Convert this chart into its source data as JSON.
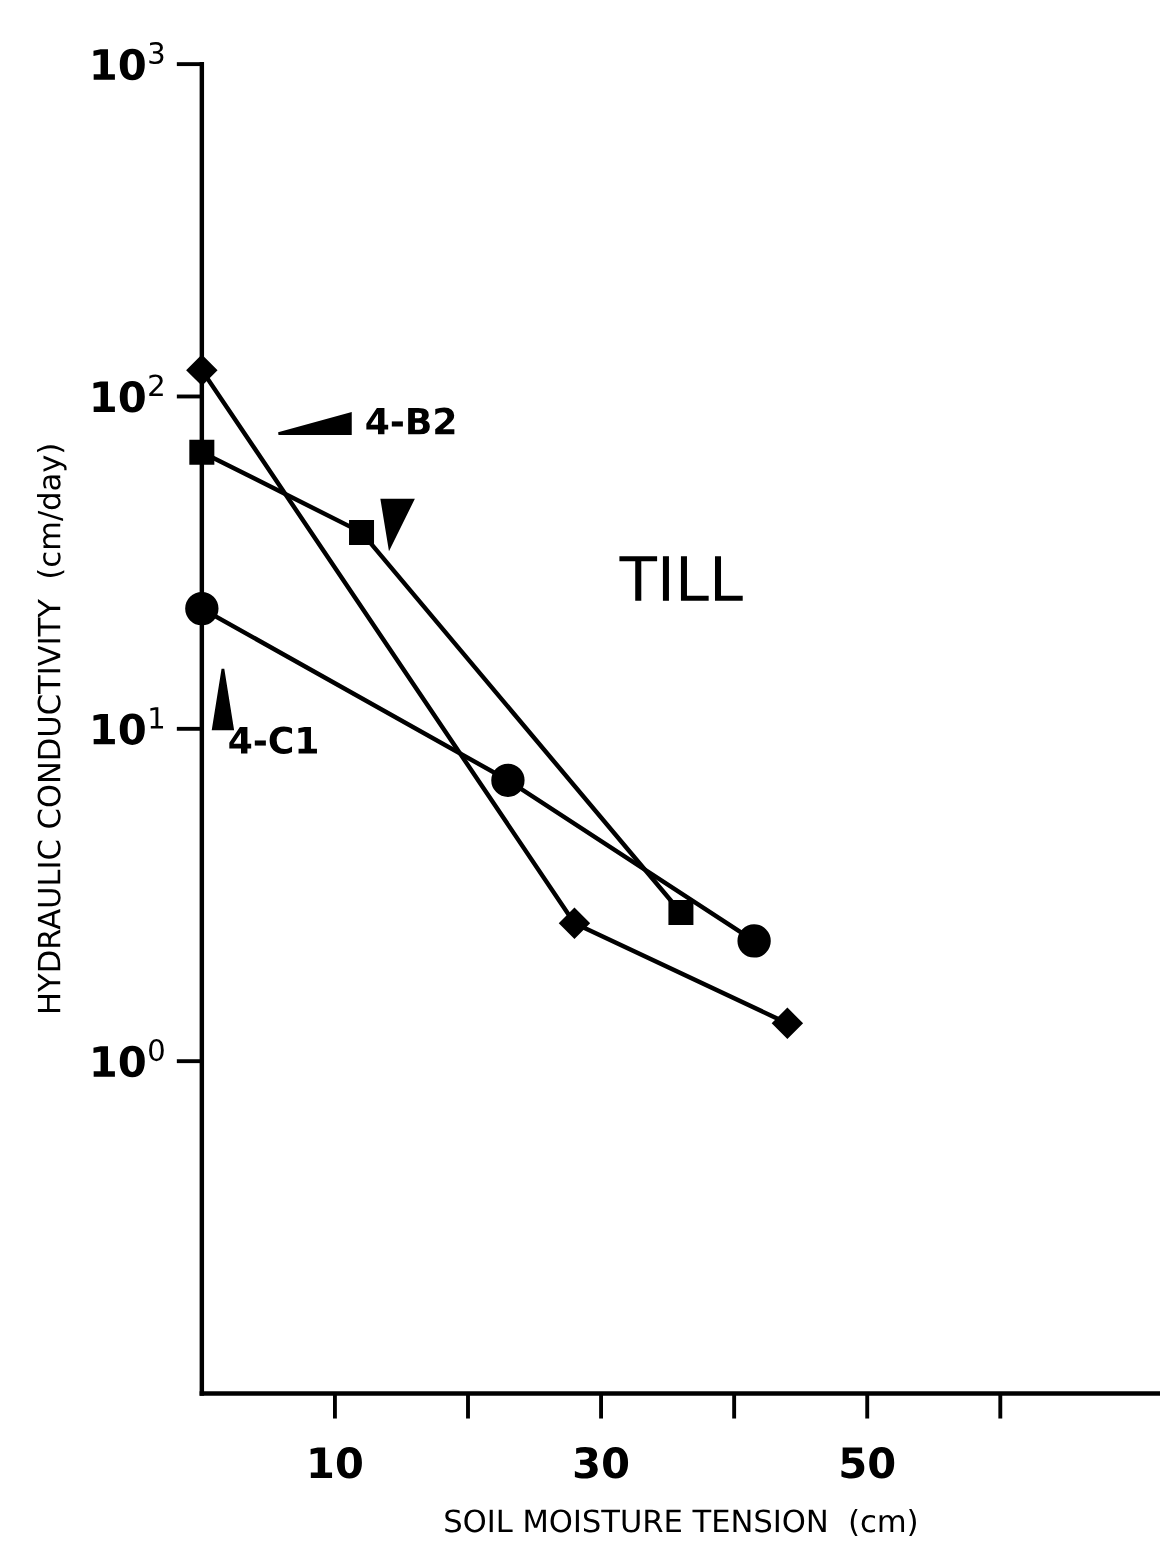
{
  "chart_data": {
    "type": "line",
    "xlabel": "SOIL MOISTURE TENSION  (cm)",
    "ylabel": "HYDRAULIC CONDUCTIVITY  (cm/day)",
    "series": [
      {
        "color": "#000000",
        "marker": "diamond",
        "x": [
          0,
          28,
          44
        ],
        "values": [
          120,
          2.6,
          1.3
        ]
      },
      {
        "color": "#000000",
        "marker": "square",
        "x": [
          0,
          12,
          36
        ],
        "values": [
          68,
          39,
          2.8
        ]
      },
      {
        "color": "#000000",
        "marker": "circle",
        "x": [
          0,
          23,
          41.5
        ],
        "values": [
          23,
          7.0,
          2.3
        ]
      }
    ],
    "log": "y",
    "xlim": [
      0,
      72
    ],
    "xticks": [
      10,
      {
        "value": 20,
        "label": null
      },
      30,
      {
        "value": 40,
        "label": null
      },
      50,
      {
        "value": 60,
        "label": null
      }
    ],
    "ylim": [
      0.1,
      1000
    ],
    "yticks": [
      {
        "value": 1,
        "label": "10$^{0}$"
      },
      {
        "value": 10,
        "label": "10$^{1}$"
      },
      {
        "value": 100,
        "label": "10$^{2}$"
      },
      {
        "value": 1000,
        "label": "10$^{3}$"
      }
    ],
    "annotations": [
      "4-B2",
      "4-C1",
      "TILL"
    ],
    "grid": false,
    "legend": false
  }
}
